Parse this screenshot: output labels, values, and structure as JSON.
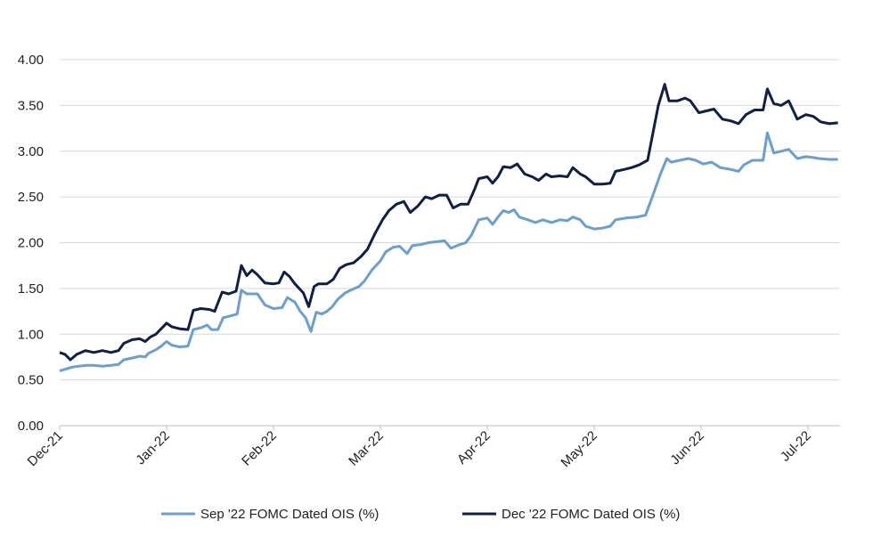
{
  "chart_data": {
    "type": "line",
    "title": "",
    "xlabel": "",
    "ylabel": "",
    "ylim": [
      0,
      4
    ],
    "y_ticks": [
      "0.00",
      "0.50",
      "1.00",
      "1.50",
      "2.00",
      "2.50",
      "3.00",
      "3.50",
      "4.00"
    ],
    "x_ticks": [
      "Dec-21",
      "Jan-22",
      "Feb-22",
      "Mar-22",
      "Apr-22",
      "May-22",
      "Jun-22",
      "Jul-22"
    ],
    "x_range": [
      0,
      7.3
    ],
    "grid": "horizontal",
    "legend_position": "bottom",
    "series": [
      {
        "name": "Sep '22 FOMC Dated OIS (%)",
        "color": "#6a9fd0",
        "points": [
          [
            0.0,
            0.6
          ],
          [
            0.06,
            0.62
          ],
          [
            0.12,
            0.64
          ],
          [
            0.18,
            0.65
          ],
          [
            0.25,
            0.66
          ],
          [
            0.32,
            0.66
          ],
          [
            0.4,
            0.65
          ],
          [
            0.48,
            0.66
          ],
          [
            0.55,
            0.67
          ],
          [
            0.6,
            0.72
          ],
          [
            0.68,
            0.74
          ],
          [
            0.75,
            0.76
          ],
          [
            0.8,
            0.75
          ],
          [
            0.83,
            0.79
          ],
          [
            0.9,
            0.83
          ],
          [
            0.95,
            0.87
          ],
          [
            1.0,
            0.92
          ],
          [
            1.05,
            0.88
          ],
          [
            1.12,
            0.86
          ],
          [
            1.2,
            0.87
          ],
          [
            1.25,
            1.05
          ],
          [
            1.32,
            1.07
          ],
          [
            1.38,
            1.1
          ],
          [
            1.42,
            1.05
          ],
          [
            1.48,
            1.05
          ],
          [
            1.53,
            1.18
          ],
          [
            1.6,
            1.2
          ],
          [
            1.66,
            1.22
          ],
          [
            1.7,
            1.48
          ],
          [
            1.75,
            1.44
          ],
          [
            1.85,
            1.44
          ],
          [
            1.92,
            1.32
          ],
          [
            2.0,
            1.28
          ],
          [
            2.08,
            1.29
          ],
          [
            2.13,
            1.4
          ],
          [
            2.2,
            1.35
          ],
          [
            2.25,
            1.25
          ],
          [
            2.3,
            1.18
          ],
          [
            2.35,
            1.03
          ],
          [
            2.4,
            1.24
          ],
          [
            2.45,
            1.22
          ],
          [
            2.5,
            1.25
          ],
          [
            2.55,
            1.3
          ],
          [
            2.6,
            1.38
          ],
          [
            2.67,
            1.45
          ],
          [
            2.72,
            1.48
          ],
          [
            2.8,
            1.52
          ],
          [
            2.85,
            1.58
          ],
          [
            2.92,
            1.7
          ],
          [
            3.0,
            1.8
          ],
          [
            3.05,
            1.9
          ],
          [
            3.12,
            1.95
          ],
          [
            3.18,
            1.96
          ],
          [
            3.25,
            1.88
          ],
          [
            3.3,
            1.97
          ],
          [
            3.38,
            1.98
          ],
          [
            3.45,
            2.0
          ],
          [
            3.52,
            2.01
          ],
          [
            3.6,
            2.02
          ],
          [
            3.66,
            1.94
          ],
          [
            3.72,
            1.97
          ],
          [
            3.8,
            2.0
          ],
          [
            3.85,
            2.08
          ],
          [
            3.92,
            2.25
          ],
          [
            4.0,
            2.27
          ],
          [
            4.05,
            2.2
          ],
          [
            4.1,
            2.28
          ],
          [
            4.15,
            2.35
          ],
          [
            4.2,
            2.33
          ],
          [
            4.25,
            2.36
          ],
          [
            4.3,
            2.28
          ],
          [
            4.38,
            2.25
          ],
          [
            4.45,
            2.22
          ],
          [
            4.52,
            2.25
          ],
          [
            4.6,
            2.22
          ],
          [
            4.68,
            2.25
          ],
          [
            4.75,
            2.24
          ],
          [
            4.8,
            2.28
          ],
          [
            4.87,
            2.25
          ],
          [
            4.92,
            2.18
          ],
          [
            5.0,
            2.15
          ],
          [
            5.08,
            2.16
          ],
          [
            5.15,
            2.18
          ],
          [
            5.2,
            2.25
          ],
          [
            5.3,
            2.27
          ],
          [
            5.4,
            2.28
          ],
          [
            5.48,
            2.3
          ],
          [
            5.55,
            2.52
          ],
          [
            5.62,
            2.75
          ],
          [
            5.68,
            2.92
          ],
          [
            5.72,
            2.88
          ],
          [
            5.8,
            2.9
          ],
          [
            5.88,
            2.92
          ],
          [
            5.95,
            2.9
          ],
          [
            6.02,
            2.86
          ],
          [
            6.1,
            2.88
          ],
          [
            6.18,
            2.82
          ],
          [
            6.28,
            2.8
          ],
          [
            6.35,
            2.78
          ],
          [
            6.4,
            2.85
          ],
          [
            6.48,
            2.9
          ],
          [
            6.58,
            2.9
          ],
          [
            6.62,
            3.2
          ],
          [
            6.68,
            2.98
          ],
          [
            6.75,
            3.0
          ],
          [
            6.82,
            3.02
          ],
          [
            6.9,
            2.92
          ],
          [
            6.98,
            2.94
          ],
          [
            7.05,
            2.93
          ],
          [
            7.1,
            2.92
          ],
          [
            7.2,
            2.91
          ],
          [
            7.28,
            2.91
          ]
        ]
      },
      {
        "name": "Dec '22 FOMC Dated OIS (%)",
        "color": "#0f1f45",
        "points": [
          [
            0.0,
            0.8
          ],
          [
            0.05,
            0.78
          ],
          [
            0.1,
            0.72
          ],
          [
            0.16,
            0.78
          ],
          [
            0.24,
            0.82
          ],
          [
            0.32,
            0.8
          ],
          [
            0.4,
            0.82
          ],
          [
            0.48,
            0.8
          ],
          [
            0.55,
            0.82
          ],
          [
            0.6,
            0.9
          ],
          [
            0.68,
            0.94
          ],
          [
            0.75,
            0.95
          ],
          [
            0.8,
            0.92
          ],
          [
            0.85,
            0.97
          ],
          [
            0.9,
            1.0
          ],
          [
            0.95,
            1.06
          ],
          [
            1.0,
            1.12
          ],
          [
            1.05,
            1.08
          ],
          [
            1.12,
            1.06
          ],
          [
            1.2,
            1.05
          ],
          [
            1.25,
            1.26
          ],
          [
            1.32,
            1.28
          ],
          [
            1.4,
            1.27
          ],
          [
            1.45,
            1.25
          ],
          [
            1.52,
            1.46
          ],
          [
            1.58,
            1.44
          ],
          [
            1.65,
            1.47
          ],
          [
            1.7,
            1.75
          ],
          [
            1.75,
            1.64
          ],
          [
            1.8,
            1.7
          ],
          [
            1.85,
            1.65
          ],
          [
            1.92,
            1.56
          ],
          [
            2.0,
            1.55
          ],
          [
            2.05,
            1.56
          ],
          [
            2.1,
            1.68
          ],
          [
            2.15,
            1.63
          ],
          [
            2.2,
            1.55
          ],
          [
            2.28,
            1.45
          ],
          [
            2.33,
            1.3
          ],
          [
            2.38,
            1.52
          ],
          [
            2.42,
            1.55
          ],
          [
            2.5,
            1.55
          ],
          [
            2.56,
            1.6
          ],
          [
            2.62,
            1.72
          ],
          [
            2.68,
            1.76
          ],
          [
            2.75,
            1.78
          ],
          [
            2.82,
            1.85
          ],
          [
            2.88,
            1.93
          ],
          [
            2.95,
            2.1
          ],
          [
            3.02,
            2.25
          ],
          [
            3.08,
            2.35
          ],
          [
            3.15,
            2.42
          ],
          [
            3.22,
            2.45
          ],
          [
            3.28,
            2.33
          ],
          [
            3.35,
            2.4
          ],
          [
            3.42,
            2.5
          ],
          [
            3.48,
            2.48
          ],
          [
            3.55,
            2.52
          ],
          [
            3.62,
            2.52
          ],
          [
            3.68,
            2.38
          ],
          [
            3.75,
            2.42
          ],
          [
            3.82,
            2.42
          ],
          [
            3.88,
            2.58
          ],
          [
            3.92,
            2.7
          ],
          [
            4.0,
            2.72
          ],
          [
            4.05,
            2.65
          ],
          [
            4.1,
            2.72
          ],
          [
            4.15,
            2.83
          ],
          [
            4.22,
            2.82
          ],
          [
            4.28,
            2.86
          ],
          [
            4.35,
            2.75
          ],
          [
            4.42,
            2.72
          ],
          [
            4.48,
            2.68
          ],
          [
            4.55,
            2.75
          ],
          [
            4.6,
            2.72
          ],
          [
            4.68,
            2.73
          ],
          [
            4.75,
            2.72
          ],
          [
            4.8,
            2.82
          ],
          [
            4.87,
            2.75
          ],
          [
            4.92,
            2.72
          ],
          [
            5.0,
            2.64
          ],
          [
            5.08,
            2.64
          ],
          [
            5.15,
            2.65
          ],
          [
            5.2,
            2.78
          ],
          [
            5.28,
            2.8
          ],
          [
            5.35,
            2.82
          ],
          [
            5.42,
            2.85
          ],
          [
            5.5,
            2.9
          ],
          [
            5.55,
            3.2
          ],
          [
            5.6,
            3.5
          ],
          [
            5.66,
            3.73
          ],
          [
            5.7,
            3.55
          ],
          [
            5.78,
            3.55
          ],
          [
            5.85,
            3.58
          ],
          [
            5.9,
            3.55
          ],
          [
            5.98,
            3.42
          ],
          [
            6.05,
            3.44
          ],
          [
            6.12,
            3.46
          ],
          [
            6.2,
            3.35
          ],
          [
            6.28,
            3.33
          ],
          [
            6.35,
            3.3
          ],
          [
            6.42,
            3.4
          ],
          [
            6.5,
            3.45
          ],
          [
            6.58,
            3.45
          ],
          [
            6.62,
            3.68
          ],
          [
            6.68,
            3.52
          ],
          [
            6.75,
            3.5
          ],
          [
            6.82,
            3.55
          ],
          [
            6.9,
            3.35
          ],
          [
            6.98,
            3.4
          ],
          [
            7.05,
            3.38
          ],
          [
            7.12,
            3.32
          ],
          [
            7.2,
            3.3
          ],
          [
            7.28,
            3.31
          ]
        ]
      }
    ]
  }
}
